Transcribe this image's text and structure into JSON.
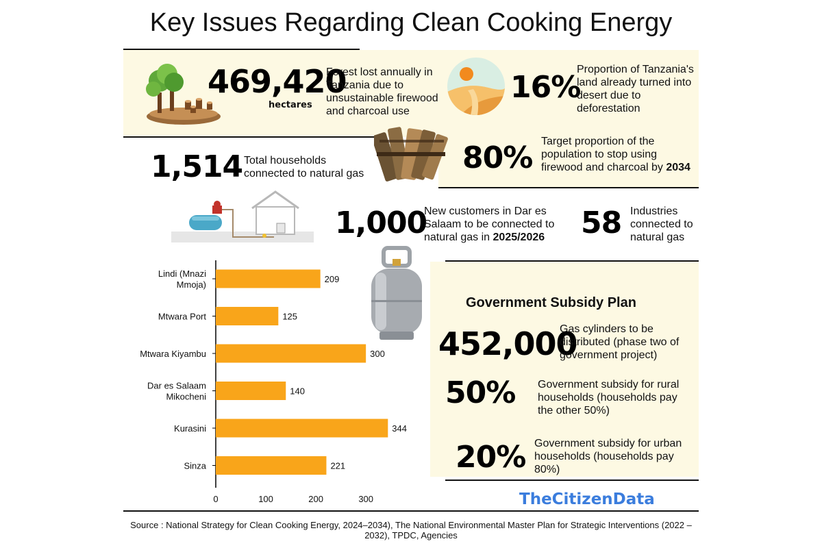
{
  "title": "Key Issues Regarding Clean Cooking Energy",
  "stats": {
    "forest": {
      "value": "469,420",
      "unit": "hectares",
      "text": "Forest lost annually in Tanzania due to unsustainable firewood and charcoal use"
    },
    "desert": {
      "value": "16%",
      "text": "Proportion of Tanzania's land already turned into desert due to deforestation"
    },
    "target": {
      "value": "80%",
      "text": "Target proportion of the population to stop using firewood and charcoal by",
      "text_bold": "2034"
    },
    "households": {
      "value": "1,514",
      "text": "Total households connected to natural gas"
    },
    "new_customers": {
      "value": "1,000",
      "text": "New customers in Dar es Salaam to be connected to natural gas in",
      "text_bold": "2025/2026"
    },
    "industries": {
      "value": "58",
      "text": "Industries connected to natural gas"
    }
  },
  "subsidy": {
    "heading": "Government Subsidy Plan",
    "cylinders": {
      "value": "452,000",
      "text": "Gas cylinders to be distributed (phase two of government project)"
    },
    "rural": {
      "value": "50%",
      "text": "Government subsidy for rural households (households pay the other 50%)"
    },
    "urban": {
      "value": "20%",
      "text": "Government subsidy for urban households (households pay 80%)"
    }
  },
  "brand": "TheCitizenData",
  "source": "Source : National Strategy for Clean Cooking Energy, 2024–2034), The National Environmental Master Plan for Strategic Interventions (2022 – 2032), TPDC, Agencies",
  "colors": {
    "bar": "#f9a51a",
    "panel": "#fdf9e3",
    "brand": "#3b7ddd"
  },
  "icons": [
    "deforested-trees-icon",
    "desert-icon",
    "firewood-bundle-icon",
    "gas-house-connection-icon",
    "gas-cylinder-icon"
  ],
  "chart_data": {
    "type": "bar",
    "orientation": "horizontal",
    "categories": [
      [
        "Lindi (Mnazi",
        "Mmoja)"
      ],
      [
        "Mtwara Port"
      ],
      [
        "Mtwara Kiyambu"
      ],
      [
        "Dar es Salaam",
        "Mikocheni"
      ],
      [
        "Kurasini"
      ],
      [
        "Sinza"
      ]
    ],
    "values": [
      209,
      125,
      300,
      140,
      344,
      221
    ],
    "xlim": [
      0,
      360
    ],
    "xticks": [
      0,
      100,
      200,
      300
    ],
    "grid": false
  }
}
